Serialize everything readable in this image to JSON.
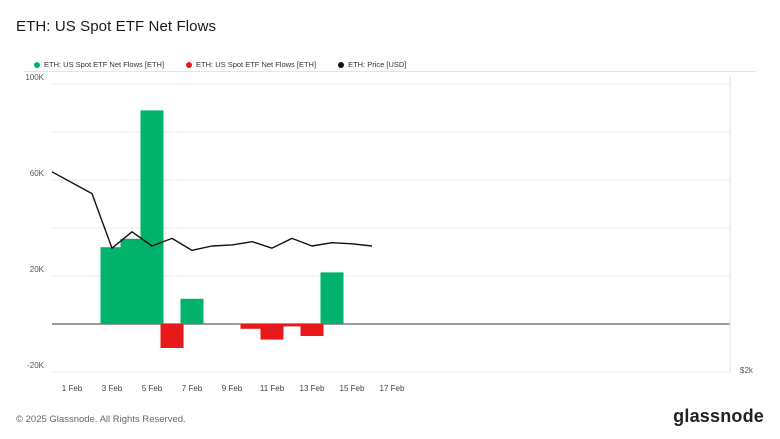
{
  "page": {
    "title": "ETH: US Spot ETF Net Flows",
    "copyright": "© 2025 Glassnode. All Rights Reserved.",
    "logo": "glassnode"
  },
  "legend": [
    {
      "label": "ETH: US Spot ETF Net Flows [ETH]",
      "color": "#00b26b"
    },
    {
      "label": "ETH: US Spot ETF Net Flows [ETH]",
      "color": "#e8191b"
    },
    {
      "label": "ETH: Price [USD]",
      "color": "#111111"
    }
  ],
  "chart_data": {
    "type": "bar",
    "x_tick_labels": [
      "1 Feb",
      "3 Feb",
      "5 Feb",
      "7 Feb",
      "9 Feb",
      "11 Feb",
      "13 Feb",
      "15 Feb",
      "17 Feb"
    ],
    "y_tick_labels": [
      "100K",
      "60K",
      "20K",
      "-20K"
    ],
    "y_right_label": "$2k",
    "ylim": [
      -20000,
      100000
    ],
    "grid": true,
    "colors": {
      "positive": "#00b26b",
      "negative": "#e8191b",
      "price": "#111111"
    },
    "series": [
      {
        "name": "ETH: US Spot ETF Net Flows [ETH]",
        "x": [
          "1 Feb",
          "2 Feb",
          "3 Feb",
          "4 Feb",
          "5 Feb",
          "6 Feb",
          "7 Feb",
          "8 Feb",
          "9 Feb",
          "10 Feb",
          "11 Feb",
          "12 Feb",
          "13 Feb",
          "14 Feb",
          "15 Feb",
          "16 Feb"
        ],
        "values": [
          0,
          0,
          32000,
          35500,
          89000,
          -10000,
          10500,
          0,
          0,
          -2000,
          -6500,
          -1000,
          -5000,
          21500,
          0,
          0
        ]
      },
      {
        "name": "ETH: Price [USD]",
        "x": [
          "1 Feb",
          "2 Feb",
          "3 Feb",
          "4 Feb",
          "5 Feb",
          "6 Feb",
          "7 Feb",
          "8 Feb",
          "9 Feb",
          "10 Feb",
          "11 Feb",
          "12 Feb",
          "13 Feb",
          "14 Feb",
          "15 Feb",
          "16 Feb"
        ],
        "values": [
          3300,
          3100,
          2600,
          2750,
          2620,
          2690,
          2580,
          2620,
          2630,
          2660,
          2600,
          2690,
          2620,
          2650,
          2640,
          2620
        ]
      }
    ]
  }
}
